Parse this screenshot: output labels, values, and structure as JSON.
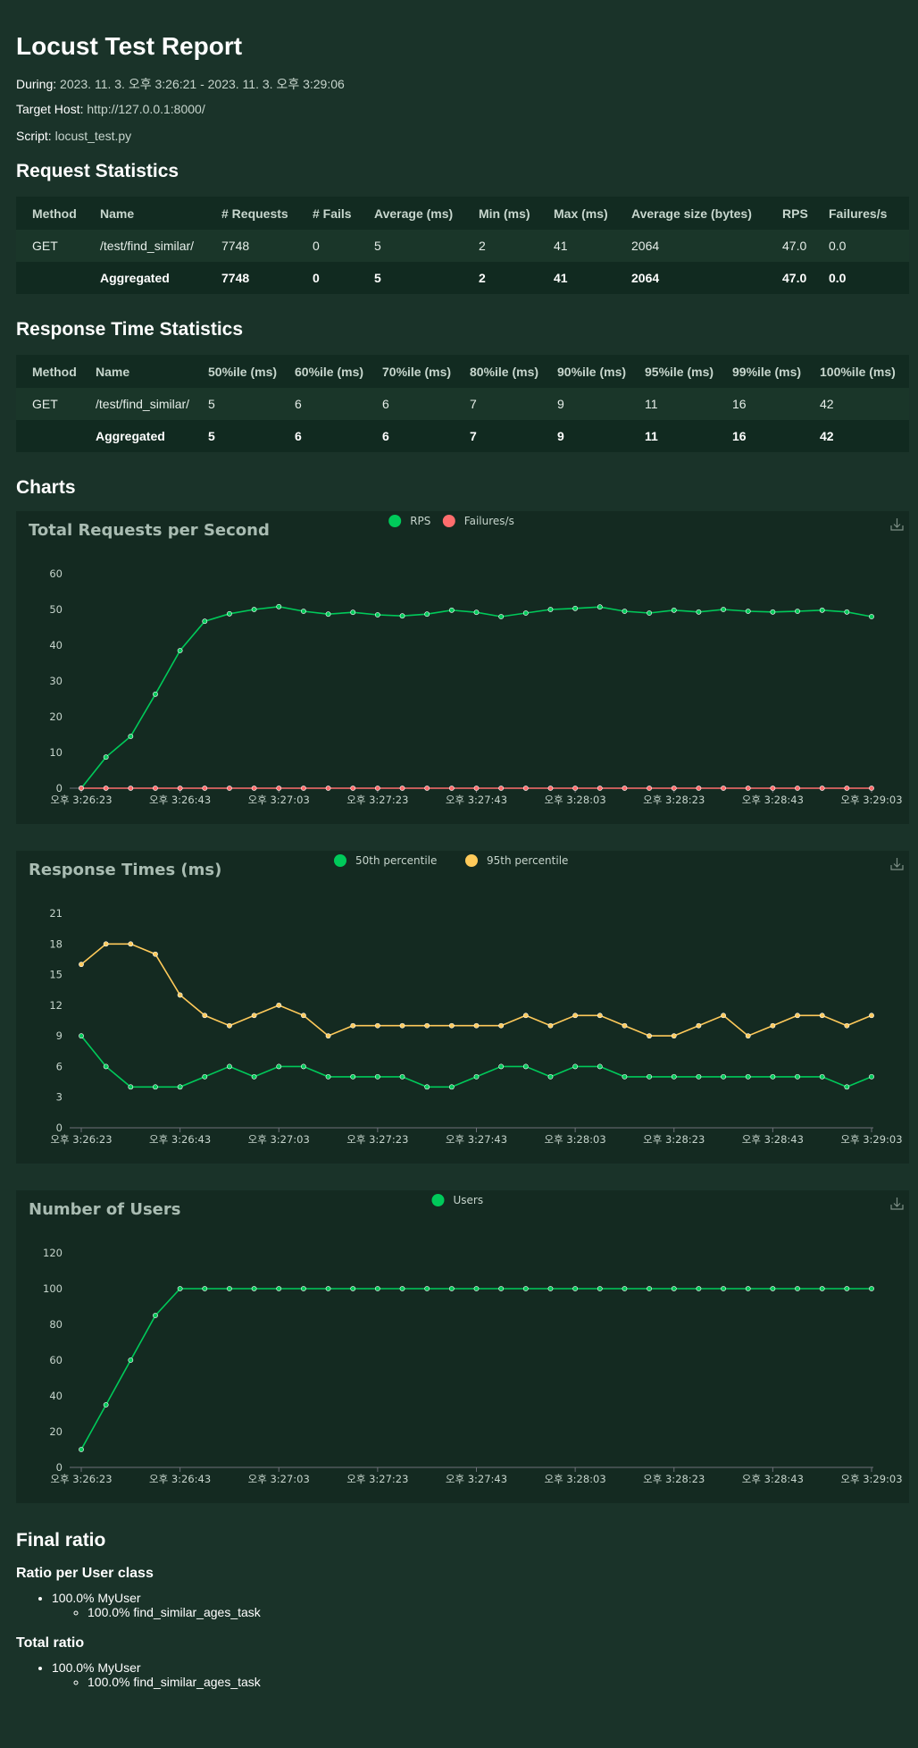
{
  "title": "Locust Test Report",
  "meta": {
    "during_label": "During:",
    "during_value": "2023. 11. 3. 오후 3:26:21 - 2023. 11. 3. 오후 3:29:06",
    "host_label": "Target Host:",
    "host_value": "http://127.0.0.1:8000/",
    "script_label": "Script:",
    "script_value": "locust_test.py"
  },
  "request_stats": {
    "heading": "Request Statistics",
    "headers": [
      "Method",
      "Name",
      "# Requests",
      "# Fails",
      "Average (ms)",
      "Min (ms)",
      "Max (ms)",
      "Average size (bytes)",
      "RPS",
      "Failures/s"
    ],
    "rows": [
      [
        "GET",
        "/test/find_similar/",
        "7748",
        "0",
        "5",
        "2",
        "41",
        "2064",
        "47.0",
        "0.0"
      ]
    ],
    "aggregated": [
      "",
      "Aggregated",
      "7748",
      "0",
      "5",
      "2",
      "41",
      "2064",
      "47.0",
      "0.0"
    ]
  },
  "response_stats": {
    "heading": "Response Time Statistics",
    "headers": [
      "Method",
      "Name",
      "50%ile (ms)",
      "60%ile (ms)",
      "70%ile (ms)",
      "80%ile (ms)",
      "90%ile (ms)",
      "95%ile (ms)",
      "99%ile (ms)",
      "100%ile (ms)"
    ],
    "rows": [
      [
        "GET",
        "/test/find_similar/",
        "5",
        "6",
        "6",
        "7",
        "9",
        "11",
        "16",
        "42"
      ]
    ],
    "aggregated": [
      "",
      "Aggregated",
      "5",
      "6",
      "6",
      "7",
      "9",
      "11",
      "16",
      "42"
    ]
  },
  "charts_heading": "Charts",
  "chart_data": [
    {
      "type": "line",
      "title": "Total Requests per Second",
      "x_ticks": [
        "오후 3:26:23",
        "오후 3:26:43",
        "오후 3:27:03",
        "오후 3:27:23",
        "오후 3:27:43",
        "오후 3:28:03",
        "오후 3:28:23",
        "오후 3:28:43",
        "오후 3:29:03"
      ],
      "ylim": [
        0,
        60
      ],
      "y_ticks": [
        0,
        10,
        20,
        30,
        40,
        50,
        60
      ],
      "legend_position": "top-center",
      "series": [
        {
          "name": "RPS",
          "color": "#00ca5a",
          "values": [
            0,
            8.7,
            14.5,
            26.3,
            38.5,
            46.7,
            48.8,
            50.0,
            50.8,
            49.5,
            48.7,
            49.2,
            48.5,
            48.2,
            48.7,
            49.8,
            49.2,
            48.0,
            49.0,
            50.0,
            50.3,
            50.7,
            49.5,
            49.0,
            49.8,
            49.3,
            50.0,
            49.5,
            49.3,
            49.5,
            49.8,
            49.3,
            48.0
          ]
        },
        {
          "name": "Failures/s",
          "color": "#ff6d6d",
          "values": [
            0,
            0,
            0,
            0,
            0,
            0,
            0,
            0,
            0,
            0,
            0,
            0,
            0,
            0,
            0,
            0,
            0,
            0,
            0,
            0,
            0,
            0,
            0,
            0,
            0,
            0,
            0,
            0,
            0,
            0,
            0,
            0,
            0
          ]
        }
      ]
    },
    {
      "type": "line",
      "title": "Response Times (ms)",
      "x_ticks": [
        "오후 3:26:23",
        "오후 3:26:43",
        "오후 3:27:03",
        "오후 3:27:23",
        "오후 3:27:43",
        "오후 3:28:03",
        "오후 3:28:23",
        "오후 3:28:43",
        "오후 3:29:03"
      ],
      "ylim": [
        0,
        21
      ],
      "y_ticks": [
        0,
        3,
        6,
        9,
        12,
        15,
        18,
        21
      ],
      "legend_position": "top-center",
      "series": [
        {
          "name": "50th percentile",
          "color": "#00ca5a",
          "values": [
            9,
            6,
            4,
            4,
            4,
            5,
            6,
            5,
            6,
            6,
            5,
            5,
            5,
            5,
            4,
            4,
            5,
            6,
            6,
            5,
            6,
            6,
            5,
            5,
            5,
            5,
            5,
            5,
            5,
            5,
            5,
            4,
            5
          ]
        },
        {
          "name": "95th percentile",
          "color": "#ffca5a",
          "values": [
            16,
            18,
            18,
            17,
            13,
            11,
            10,
            11,
            12,
            11,
            9,
            10,
            10,
            10,
            10,
            10,
            10,
            10,
            11,
            10,
            11,
            11,
            10,
            9,
            9,
            10,
            11,
            9,
            10,
            11,
            11,
            10,
            11
          ]
        }
      ]
    },
    {
      "type": "line",
      "title": "Number of Users",
      "x_ticks": [
        "오후 3:26:23",
        "오후 3:26:43",
        "오후 3:27:03",
        "오후 3:27:23",
        "오후 3:27:43",
        "오후 3:28:03",
        "오후 3:28:23",
        "오후 3:28:43",
        "오후 3:29:03"
      ],
      "ylim": [
        0,
        120
      ],
      "y_ticks": [
        0,
        20,
        40,
        60,
        80,
        100,
        120
      ],
      "legend_position": "top-center",
      "series": [
        {
          "name": "Users",
          "color": "#00ca5a",
          "values": [
            10,
            35,
            60,
            85,
            100,
            100,
            100,
            100,
            100,
            100,
            100,
            100,
            100,
            100,
            100,
            100,
            100,
            100,
            100,
            100,
            100,
            100,
            100,
            100,
            100,
            100,
            100,
            100,
            100,
            100,
            100,
            100,
            100
          ]
        }
      ]
    }
  ],
  "final_ratio": {
    "heading": "Final ratio",
    "per_class_heading": "Ratio per User class",
    "per_class_item": "100.0% MyUser",
    "per_class_sub": "100.0% find_similar_ages_task",
    "total_heading": "Total ratio",
    "total_item": "100.0% MyUser",
    "total_sub": "100.0% find_similar_ages_task"
  },
  "colors": {
    "background": "#1a3329",
    "table_bg": "#122b21",
    "chart_bg": "#142a21",
    "green": "#00ca5a",
    "red": "#ff6d6d",
    "yellow": "#ffca5a"
  },
  "icons": {
    "download": "download-icon"
  }
}
